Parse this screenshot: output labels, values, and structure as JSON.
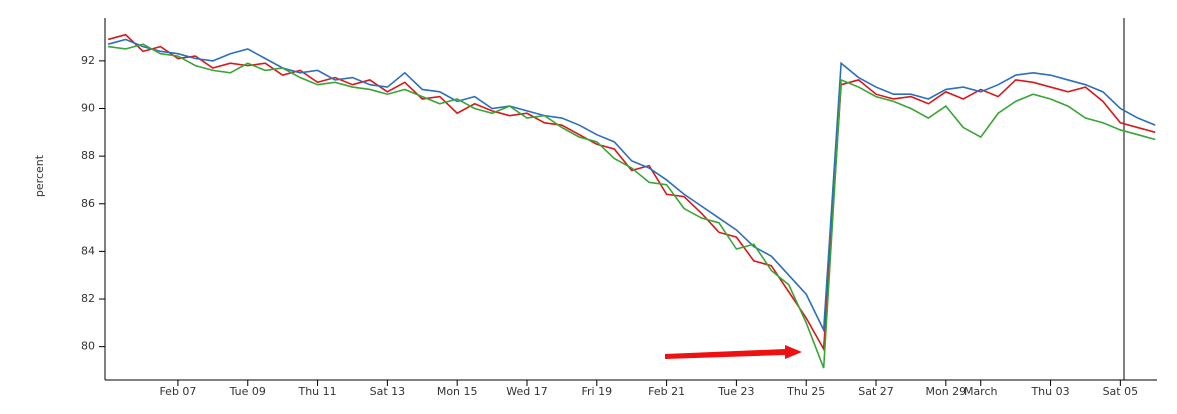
{
  "chart_data": {
    "type": "line",
    "y_label": "percent",
    "x": [
      5,
      5.5,
      6,
      6.5,
      7,
      7.5,
      8,
      8.5,
      9,
      9.5,
      10,
      10.5,
      11,
      11.5,
      12,
      12.5,
      13,
      13.5,
      14,
      14.5,
      15,
      15.5,
      16,
      16.5,
      17,
      17.5,
      18,
      18.5,
      19,
      19.5,
      20,
      20.5,
      21,
      21.5,
      22,
      22.5,
      23,
      23.5,
      24,
      24.5,
      25,
      25.5,
      26,
      26.5,
      27,
      27.5,
      28,
      28.5,
      29,
      29.5,
      30,
      30.5,
      31,
      31.5,
      32,
      32.5,
      33,
      33.5,
      34,
      34.5,
      35
    ],
    "series": [
      {
        "color": "#d7191c",
        "values": [
          92.9,
          93.1,
          92.4,
          92.6,
          92.1,
          92.2,
          91.7,
          91.9,
          91.8,
          91.9,
          91.4,
          91.6,
          91.1,
          91.3,
          91.0,
          91.2,
          90.7,
          91.1,
          90.4,
          90.5,
          89.8,
          90.2,
          89.9,
          89.7,
          89.8,
          89.4,
          89.3,
          88.9,
          88.5,
          88.3,
          87.4,
          87.6,
          86.4,
          86.3,
          85.6,
          84.8,
          84.6,
          83.6,
          83.4,
          82.3,
          81.2,
          79.9,
          91.0,
          91.2,
          90.6,
          90.4,
          90.5,
          90.2,
          90.7,
          90.4,
          90.8,
          90.5,
          91.2,
          91.1,
          90.9,
          90.7,
          90.9,
          90.3,
          89.4,
          89.2,
          89.0
        ]
      },
      {
        "color": "#2c6fbb",
        "values": [
          92.7,
          92.9,
          92.6,
          92.4,
          92.3,
          92.1,
          92.0,
          92.3,
          92.5,
          92.1,
          91.7,
          91.5,
          91.6,
          91.2,
          91.3,
          91.0,
          90.9,
          91.5,
          90.8,
          90.7,
          90.3,
          90.5,
          90.0,
          90.1,
          89.9,
          89.7,
          89.6,
          89.3,
          88.9,
          88.6,
          87.8,
          87.5,
          87.0,
          86.4,
          85.9,
          85.4,
          84.9,
          84.2,
          83.8,
          83.0,
          82.2,
          80.7,
          91.9,
          91.3,
          90.9,
          90.6,
          90.6,
          90.4,
          90.8,
          90.9,
          90.7,
          91.0,
          91.4,
          91.5,
          91.4,
          91.2,
          91.0,
          90.7,
          90.0,
          89.6,
          89.3
        ]
      },
      {
        "color": "#3aa535",
        "values": [
          92.6,
          92.5,
          92.7,
          92.3,
          92.2,
          91.8,
          91.6,
          91.5,
          91.9,
          91.6,
          91.7,
          91.3,
          91.0,
          91.1,
          90.9,
          90.8,
          90.6,
          90.8,
          90.5,
          90.2,
          90.4,
          90.0,
          89.8,
          90.1,
          89.6,
          89.7,
          89.2,
          88.8,
          88.6,
          87.9,
          87.5,
          86.9,
          86.8,
          85.8,
          85.4,
          85.2,
          84.1,
          84.3,
          83.2,
          82.6,
          81.0,
          79.1,
          91.2,
          90.9,
          90.5,
          90.3,
          90.0,
          89.6,
          90.1,
          89.2,
          88.8,
          89.8,
          90.3,
          90.6,
          90.4,
          90.1,
          89.6,
          89.4,
          89.1,
          88.9,
          88.7
        ]
      }
    ],
    "xlim": [
      4.91,
      35.05
    ],
    "xticks": [
      {
        "value": 7,
        "label": "Feb 07"
      },
      {
        "value": 9,
        "label": "Tue 09"
      },
      {
        "value": 11,
        "label": "Thu 11"
      },
      {
        "value": 13,
        "label": "Sat 13"
      },
      {
        "value": 15,
        "label": "Mon 15"
      },
      {
        "value": 17,
        "label": "Wed 17"
      },
      {
        "value": 19,
        "label": "Fri 19"
      },
      {
        "value": 21,
        "label": "Feb 21"
      },
      {
        "value": 23,
        "label": "Tue 23"
      },
      {
        "value": 25,
        "label": "Thu 25"
      },
      {
        "value": 27,
        "label": "Sat 27"
      },
      {
        "value": 29,
        "label": "Mon 29"
      },
      {
        "value": 30,
        "label": "March"
      },
      {
        "value": 32,
        "label": "Thu 03"
      },
      {
        "value": 34,
        "label": "Sat 05"
      }
    ],
    "ylim": [
      78.6,
      93.8
    ],
    "yticks": [
      80,
      82,
      84,
      86,
      88,
      90,
      92
    ]
  }
}
